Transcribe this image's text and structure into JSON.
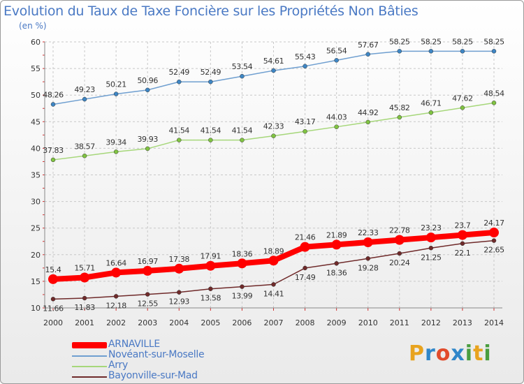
{
  "title": "Evolution du Taux de Taxe Foncière sur les Propriétés Non Bâties",
  "y_unit_label": "(en %)",
  "logo": {
    "letters": [
      "P",
      "r",
      "o",
      "x",
      "i",
      "t",
      "i"
    ],
    "colors": [
      "#e8a31e",
      "#2f86c9",
      "#e14b2b",
      "#2f86c9",
      "#4a9e3f",
      "#e8a31e",
      "#4a9e3f"
    ]
  },
  "chart_data": {
    "type": "line",
    "title": "Evolution du Taux de Taxe Foncière sur les Propriétés Non Bâties",
    "ylabel": "(en %)",
    "xlabel": "",
    "x": [
      "2000",
      "2001",
      "2002",
      "2003",
      "2004",
      "2005",
      "2006",
      "2007",
      "2008",
      "2009",
      "2010",
      "2011",
      "2012",
      "2013",
      "2014"
    ],
    "ylim": [
      10,
      60
    ],
    "yticks": [
      "10",
      "15",
      "20",
      "25",
      "30",
      "35",
      "40",
      "45",
      "50",
      "55",
      "60"
    ],
    "grid": true,
    "series": [
      {
        "name": "Novéant-sur-Moselle",
        "color": "#6f9fd0",
        "marker": "#3e86c4",
        "values": [
          48.26,
          49.23,
          50.21,
          50.96,
          52.49,
          52.49,
          53.54,
          54.61,
          55.43,
          56.54,
          57.67,
          58.25,
          58.25,
          58.25,
          58.25
        ],
        "labels": [
          "48.26",
          "49.23",
          "50.21",
          "50.96",
          "52.49",
          "52.49",
          "53.54",
          "54.61",
          "55.43",
          "56.54",
          "57.67",
          "58.25",
          "58.25",
          "58.25",
          "58.25"
        ]
      },
      {
        "name": "Arry",
        "color": "#a6d77a",
        "marker": "#80c342",
        "values": [
          37.83,
          38.57,
          39.34,
          39.93,
          41.54,
          41.54,
          41.54,
          42.33,
          43.17,
          44.03,
          44.92,
          45.82,
          46.71,
          47.62,
          48.54
        ],
        "labels": [
          "37.83",
          "38.57",
          "39.34",
          "39.93",
          "41.54",
          "41.54",
          "41.54",
          "42.33",
          "43.17",
          "44.03",
          "44.92",
          "45.82",
          "46.71",
          "47.62",
          "48.54"
        ]
      },
      {
        "name": "Bayonville-sur-Mad",
        "color": "#6f2a2a",
        "marker": "#6f2a2a",
        "values": [
          11.66,
          11.83,
          12.18,
          12.55,
          12.93,
          13.58,
          13.99,
          14.41,
          17.49,
          18.36,
          19.28,
          20.24,
          21.25,
          22.1,
          22.65
        ],
        "labels": [
          "11.66",
          "11.83",
          "12.18",
          "12.55",
          "12.93",
          "13.58",
          "13.99",
          "14.41",
          "17.49",
          "18.36",
          "19.28",
          "20.24",
          "21.25",
          "22.1",
          "22.65"
        ]
      },
      {
        "name": "ARNAVILLE",
        "color": "#ff0000",
        "marker": "#ff0000",
        "values": [
          15.4,
          15.71,
          16.64,
          16.97,
          17.38,
          17.91,
          18.36,
          18.89,
          21.46,
          21.89,
          22.33,
          22.78,
          23.23,
          23.7,
          24.17
        ],
        "labels": [
          "15.4",
          "15.71",
          "16.64",
          "16.97",
          "17.38",
          "17.91",
          "18.36",
          "18.89",
          "21.46",
          "21.89",
          "22.33",
          "22.78",
          "23.23",
          "23.7",
          "24.17"
        ]
      }
    ],
    "legend": [
      "ARNAVILLE",
      "Novéant-sur-Moselle",
      "Arry",
      "Bayonville-sur-Mad"
    ],
    "legend_position": "bottom-left"
  }
}
